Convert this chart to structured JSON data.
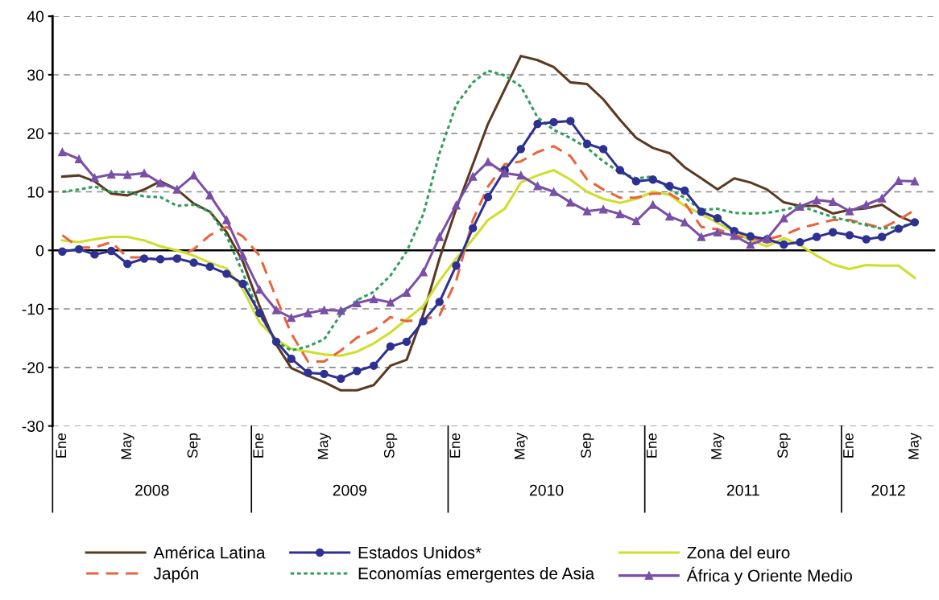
{
  "chart_data": {
    "type": "line",
    "x": [
      "2008-01",
      "2008-02",
      "2008-03",
      "2008-04",
      "2008-05",
      "2008-06",
      "2008-07",
      "2008-08",
      "2008-09",
      "2008-10",
      "2008-11",
      "2008-12",
      "2009-01",
      "2009-02",
      "2009-03",
      "2009-04",
      "2009-05",
      "2009-06",
      "2009-07",
      "2009-08",
      "2009-09",
      "2009-10",
      "2009-11",
      "2009-12",
      "2010-01",
      "2010-02",
      "2010-03",
      "2010-04",
      "2010-05",
      "2010-06",
      "2010-07",
      "2010-08",
      "2010-09",
      "2010-10",
      "2010-11",
      "2010-12",
      "2011-01",
      "2011-02",
      "2011-03",
      "2011-04",
      "2011-05",
      "2011-06",
      "2011-07",
      "2011-08",
      "2011-09",
      "2011-10",
      "2011-11",
      "2011-12",
      "2012-01",
      "2012-02",
      "2012-03",
      "2012-04",
      "2012-05"
    ],
    "xlim": [
      "2007-12-14",
      "2012-06-08"
    ],
    "xticks": [
      {
        "value": "2008-01",
        "label": "Ene"
      },
      {
        "value": "2008-05",
        "label": "May"
      },
      {
        "value": "2008-09",
        "label": "Sep"
      },
      {
        "value": "2009-01",
        "label": "Ene"
      },
      {
        "value": "2009-05",
        "label": "May"
      },
      {
        "value": "2009-09",
        "label": "Sep"
      },
      {
        "value": "2010-01",
        "label": "Ene"
      },
      {
        "value": "2010-05",
        "label": "May"
      },
      {
        "value": "2010-09",
        "label": "Sep"
      },
      {
        "value": "2011-01",
        "label": "Ene"
      },
      {
        "value": "2011-05",
        "label": "May"
      },
      {
        "value": "2011-09",
        "label": "Sep"
      },
      {
        "value": "2012-01",
        "label": "Ene"
      },
      {
        "value": "2012-05",
        "label": "May"
      }
    ],
    "ylim": [
      -30,
      40
    ],
    "yticks": [
      -30,
      -20,
      -10,
      0,
      10,
      20,
      30,
      40
    ],
    "grid": "y",
    "legend": "bottom",
    "ref_lines": [
      {
        "axis": "y",
        "value": 0,
        "color": "#000000",
        "line_style": "solid"
      }
    ],
    "annotations": [
      "2008",
      "2009",
      "2010",
      "2011",
      "2012"
    ],
    "series": [
      {
        "name": "América Latina",
        "color": "#5c3a21",
        "line_style": "solid",
        "marker": "none",
        "values": [
          12.6,
          12.8,
          11.8,
          9.7,
          9.4,
          10.4,
          11.8,
          10.4,
          8.0,
          6.6,
          3.1,
          -1.9,
          -9.5,
          -16.1,
          -20.1,
          -21.4,
          -22.5,
          -23.9,
          -23.9,
          -23.0,
          -19.7,
          -18.7,
          -10.9,
          -1.4,
          7.1,
          14.7,
          21.6,
          27.5,
          33.2,
          32.5,
          31.3,
          28.7,
          28.4,
          25.8,
          22.3,
          19.2,
          17.5,
          16.6,
          14.2,
          12.3,
          10.4,
          12.3,
          11.6,
          10.4,
          8.2,
          7.6,
          7.6,
          6.3,
          6.9,
          7.2,
          7.8,
          5.9,
          4.7
        ]
      },
      {
        "name": "Estados Unidos*",
        "color": "#2e3192",
        "line_style": "solid",
        "marker": "circle",
        "values": [
          -0.2,
          0.2,
          -0.7,
          -0.1,
          -2.3,
          -1.4,
          -1.5,
          -1.4,
          -2.1,
          -2.8,
          -4.0,
          -5.7,
          -10.7,
          -15.6,
          -18.5,
          -20.9,
          -21.1,
          -21.9,
          -20.6,
          -19.7,
          -16.4,
          -15.6,
          -12.1,
          -8.8,
          -2.6,
          3.8,
          9.1,
          13.7,
          17.3,
          21.6,
          21.9,
          22.1,
          18.2,
          17.3,
          13.7,
          11.8,
          12.1,
          11.0,
          10.2,
          6.6,
          5.5,
          3.3,
          2.4,
          1.9,
          1.0,
          1.4,
          2.3,
          3.1,
          2.6,
          1.9,
          2.3,
          3.7,
          4.8
        ]
      },
      {
        "name": "Zona del euro",
        "color": "#cfdf2a",
        "line_style": "solid",
        "marker": "none",
        "values": [
          1.7,
          1.4,
          1.9,
          2.3,
          2.3,
          1.7,
          0.7,
          0.0,
          -0.9,
          -2.1,
          -3.1,
          -6.6,
          -12.3,
          -15.2,
          -16.8,
          -17.3,
          -17.8,
          -18.0,
          -17.3,
          -15.9,
          -14.0,
          -11.8,
          -9.5,
          -5.2,
          -1.4,
          1.9,
          5.2,
          7.1,
          11.6,
          12.8,
          13.7,
          12.1,
          10.0,
          8.8,
          8.1,
          8.8,
          10.0,
          9.5,
          7.6,
          6.2,
          4.7,
          3.1,
          1.7,
          0.7,
          2.1,
          0.9,
          -0.9,
          -2.4,
          -3.2,
          -2.5,
          -2.6,
          -2.6,
          -4.7
        ]
      },
      {
        "name": "Japón",
        "color": "#e8643c",
        "line_style": "dashed",
        "marker": "none",
        "values": [
          2.6,
          0.5,
          0.5,
          1.4,
          -1.2,
          -1.2,
          -1.7,
          -1.2,
          0.2,
          2.6,
          4.0,
          2.4,
          -0.9,
          -8.1,
          -14.2,
          -19.0,
          -19.0,
          -17.1,
          -14.9,
          -13.7,
          -11.4,
          -12.1,
          -11.8,
          -11.1,
          -5.2,
          5.2,
          10.9,
          14.7,
          15.2,
          16.8,
          17.8,
          16.1,
          12.1,
          10.4,
          9.0,
          9.0,
          9.7,
          9.7,
          8.1,
          4.0,
          3.6,
          2.6,
          1.9,
          1.9,
          2.6,
          3.8,
          4.5,
          5.2,
          5.2,
          4.5,
          3.8,
          5.2,
          6.9
        ]
      },
      {
        "name": "Economías emergentes de Asia",
        "color": "#2e9e5a",
        "line_style": "dotted",
        "marker": "none",
        "values": [
          10.0,
          10.4,
          10.9,
          10.0,
          10.0,
          9.2,
          9.1,
          7.6,
          7.8,
          6.6,
          2.4,
          -3.8,
          -10.9,
          -15.6,
          -17.1,
          -16.4,
          -15.2,
          -10.9,
          -8.5,
          -7.1,
          -4.3,
          -0.2,
          6.2,
          16.6,
          24.9,
          28.7,
          30.7,
          29.9,
          28.0,
          22.7,
          20.6,
          19.2,
          17.5,
          15.2,
          13.3,
          12.3,
          12.6,
          10.4,
          9.0,
          6.9,
          7.1,
          6.4,
          6.3,
          6.4,
          6.9,
          7.6,
          6.6,
          5.7,
          5.0,
          4.3,
          3.7,
          4.0,
          4.7
        ]
      },
      {
        "name": "África y Oriente Medio",
        "color": "#7a4fa8",
        "line_style": "solid",
        "marker": "triangle",
        "values": [
          16.8,
          15.6,
          12.4,
          13.0,
          12.9,
          13.2,
          11.5,
          10.4,
          12.8,
          9.4,
          5.2,
          -0.9,
          -6.7,
          -10.2,
          -11.5,
          -10.7,
          -10.2,
          -10.3,
          -9.0,
          -8.3,
          -8.9,
          -7.2,
          -3.7,
          2.3,
          7.7,
          12.6,
          15.1,
          13.2,
          12.8,
          11.0,
          10.0,
          8.2,
          6.7,
          7.0,
          6.2,
          5.0,
          7.8,
          5.8,
          4.8,
          2.3,
          3.1,
          2.5,
          1.0,
          2.0,
          5.5,
          7.5,
          8.6,
          8.3,
          6.7,
          7.8,
          8.9,
          11.9,
          11.8
        ]
      }
    ]
  }
}
